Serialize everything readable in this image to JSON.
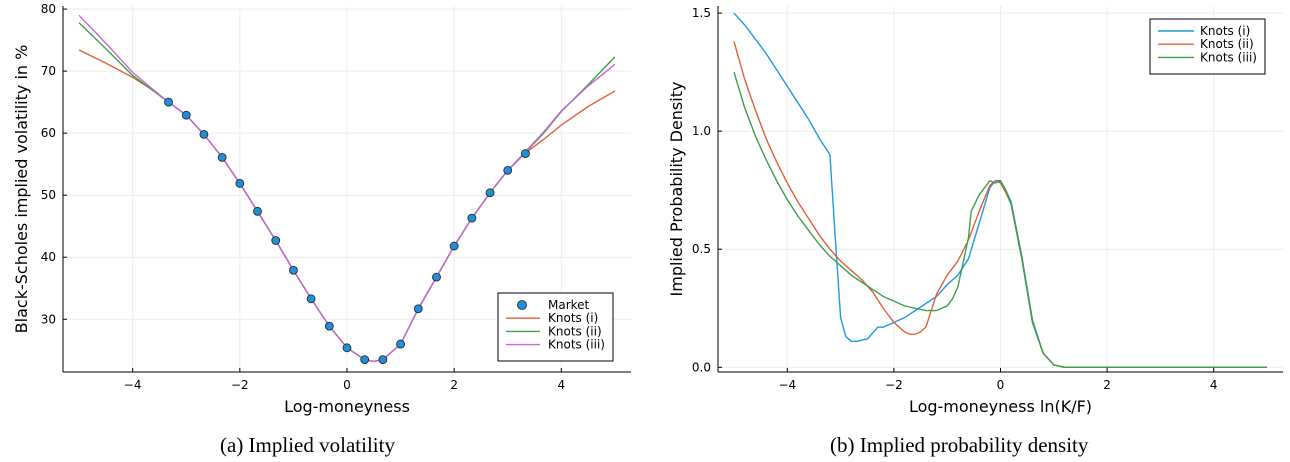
{
  "colors": {
    "market": "#1f8fd6",
    "knots_i_left": "#e0603a",
    "knots_ii_left": "#3ba14b",
    "knots_iii_left": "#c966d9",
    "knots_i_right": "#1f9be0",
    "knots_ii_right": "#e0603a",
    "knots_iii_right": "#3ba14b",
    "grid": "#ececec",
    "frame": "#000000"
  },
  "captions": {
    "left": "(a)  Implied volatility",
    "right": "(b)  Implied probability density"
  },
  "chart_data": [
    {
      "type": "line",
      "title": "",
      "xlabel": "Log-moneyness",
      "ylabel": "Black-Scholes implied volatility in %",
      "xlim": [
        -5.3,
        5.3
      ],
      "ylim": [
        21.5,
        80.5
      ],
      "xticks": [
        -4,
        -2,
        0,
        2,
        4
      ],
      "xtick_labels": [
        "−4",
        "−2",
        "0",
        "2",
        "4"
      ],
      "yticks": [
        30,
        40,
        50,
        60,
        70,
        80
      ],
      "ytick_labels": [
        "30",
        "40",
        "50",
        "60",
        "70",
        "80"
      ],
      "grid": true,
      "legend": "bottom-right",
      "scatter": {
        "name": "Market",
        "x": [
          -3.33,
          -3.0,
          -2.67,
          -2.33,
          -2.0,
          -1.67,
          -1.33,
          -1.0,
          -0.67,
          -0.33,
          0.0,
          0.33,
          0.67,
          1.0,
          1.33,
          1.67,
          2.0,
          2.33,
          2.67,
          3.0,
          3.33
        ],
        "y": [
          65.0,
          62.9,
          59.8,
          56.1,
          51.9,
          47.4,
          42.7,
          37.9,
          33.3,
          28.9,
          25.4,
          23.5,
          23.5,
          26.0,
          31.7,
          36.8,
          41.8,
          46.3,
          50.4,
          54.0,
          56.7
        ]
      },
      "series": [
        {
          "name": "Knots (i)",
          "x": [
            -5,
            -4.5,
            -4,
            -3.67,
            -3.33,
            -3.0,
            -2.67,
            -2.33,
            -2.0,
            -1.67,
            -1.33,
            -1.0,
            -0.67,
            -0.33,
            0.0,
            0.33,
            0.5,
            0.67,
            1.0,
            1.33,
            1.67,
            2.0,
            2.33,
            2.67,
            3.0,
            3.33,
            3.67,
            4.0,
            4.5,
            5.0
          ],
          "y": [
            73.4,
            71.3,
            69.0,
            67.2,
            65.0,
            62.9,
            59.8,
            56.1,
            51.9,
            47.4,
            42.7,
            37.9,
            33.3,
            28.9,
            25.4,
            23.5,
            23.2,
            23.5,
            26.0,
            31.7,
            36.8,
            41.8,
            46.3,
            50.4,
            54.0,
            56.8,
            59.0,
            61.3,
            64.3,
            66.8
          ]
        },
        {
          "name": "Knots (ii)",
          "x": [
            -5,
            -4.5,
            -4,
            -3.67,
            -3.33,
            -3.0,
            -2.67,
            -2.33,
            -2.0,
            -1.67,
            -1.33,
            -1.0,
            -0.67,
            -0.33,
            0.0,
            0.33,
            0.5,
            0.67,
            1.0,
            1.33,
            1.67,
            2.0,
            2.33,
            2.67,
            3.0,
            3.33,
            3.67,
            4.0,
            4.5,
            5.0
          ],
          "y": [
            77.8,
            73.6,
            69.3,
            67.2,
            65.0,
            62.9,
            59.8,
            56.1,
            51.9,
            47.4,
            42.7,
            37.9,
            33.3,
            28.9,
            25.4,
            23.5,
            23.2,
            23.5,
            26.0,
            31.7,
            36.8,
            41.8,
            46.3,
            50.4,
            54.0,
            56.9,
            60.0,
            63.5,
            67.8,
            72.3
          ]
        },
        {
          "name": "Knots (iii)",
          "x": [
            -5,
            -4.5,
            -4,
            -3.67,
            -3.33,
            -3.0,
            -2.67,
            -2.33,
            -2.0,
            -1.67,
            -1.33,
            -1.0,
            -0.67,
            -0.33,
            0.0,
            0.33,
            0.5,
            0.67,
            1.0,
            1.33,
            1.67,
            2.0,
            2.33,
            2.67,
            3.0,
            3.33,
            3.67,
            4.0,
            4.5,
            5.0
          ],
          "y": [
            79.0,
            74.5,
            69.8,
            67.4,
            65.0,
            62.9,
            59.8,
            56.1,
            51.9,
            47.4,
            42.7,
            37.9,
            33.3,
            28.9,
            25.4,
            23.5,
            23.2,
            23.5,
            26.0,
            31.7,
            36.8,
            41.8,
            46.3,
            50.4,
            54.0,
            57.0,
            60.2,
            63.6,
            67.6,
            71.1
          ]
        }
      ]
    },
    {
      "type": "line",
      "title": "",
      "xlabel": "Log-moneyness ln(K/F)",
      "ylabel": "Implied Probability Density",
      "xlim": [
        -5.3,
        5.3
      ],
      "ylim": [
        -0.02,
        1.53
      ],
      "xticks": [
        -4,
        -2,
        0,
        2,
        4
      ],
      "xtick_labels": [
        "−4",
        "−2",
        "0",
        "2",
        "4"
      ],
      "yticks": [
        0.0,
        0.5,
        1.0,
        1.5
      ],
      "ytick_labels": [
        "0.0",
        "0.5",
        "1.0",
        "1.5"
      ],
      "grid": true,
      "legend": "top-right",
      "series": [
        {
          "name": "Knots (i)",
          "x": [
            -5.0,
            -4.8,
            -4.6,
            -4.4,
            -4.2,
            -4.0,
            -3.8,
            -3.6,
            -3.4,
            -3.2,
            -3.1,
            -3.0,
            -2.9,
            -2.8,
            -2.7,
            -2.5,
            -2.3,
            -2.2,
            -2.0,
            -1.8,
            -1.6,
            -1.4,
            -1.2,
            -1.0,
            -0.8,
            -0.6,
            -0.4,
            -0.2,
            -0.1,
            0.0,
            0.1,
            0.2,
            0.4,
            0.6,
            0.8,
            1.0,
            1.2,
            1.5,
            2.0,
            3.0,
            4.0,
            5.0
          ],
          "y": [
            1.5,
            1.45,
            1.39,
            1.33,
            1.26,
            1.19,
            1.12,
            1.05,
            0.97,
            0.9,
            0.55,
            0.21,
            0.13,
            0.11,
            0.11,
            0.12,
            0.17,
            0.17,
            0.19,
            0.21,
            0.24,
            0.27,
            0.3,
            0.35,
            0.39,
            0.46,
            0.61,
            0.76,
            0.79,
            0.79,
            0.75,
            0.7,
            0.47,
            0.2,
            0.06,
            0.01,
            0.0,
            0.0,
            0.0,
            0.0,
            0.0,
            0.0
          ]
        },
        {
          "name": "Knots (ii)",
          "x": [
            -5.0,
            -4.8,
            -4.6,
            -4.4,
            -4.2,
            -4.0,
            -3.8,
            -3.6,
            -3.4,
            -3.2,
            -3.0,
            -2.8,
            -2.6,
            -2.4,
            -2.2,
            -2.0,
            -1.8,
            -1.7,
            -1.6,
            -1.5,
            -1.4,
            -1.3,
            -1.2,
            -1.0,
            -0.8,
            -0.6,
            -0.4,
            -0.2,
            -0.1,
            0.0,
            0.1,
            0.2,
            0.4,
            0.6,
            0.8,
            1.0,
            1.2,
            1.5,
            2.0,
            3.0,
            4.0,
            5.0
          ],
          "y": [
            1.38,
            1.22,
            1.09,
            0.97,
            0.87,
            0.78,
            0.7,
            0.63,
            0.56,
            0.5,
            0.45,
            0.41,
            0.37,
            0.32,
            0.25,
            0.19,
            0.15,
            0.14,
            0.14,
            0.15,
            0.17,
            0.24,
            0.31,
            0.39,
            0.45,
            0.54,
            0.66,
            0.77,
            0.79,
            0.78,
            0.74,
            0.69,
            0.46,
            0.19,
            0.06,
            0.01,
            0.0,
            0.0,
            0.0,
            0.0,
            0.0,
            0.0
          ]
        },
        {
          "name": "Knots (iii)",
          "x": [
            -5.0,
            -4.8,
            -4.6,
            -4.4,
            -4.2,
            -4.0,
            -3.8,
            -3.6,
            -3.4,
            -3.2,
            -3.0,
            -2.8,
            -2.6,
            -2.4,
            -2.2,
            -2.0,
            -1.8,
            -1.6,
            -1.4,
            -1.2,
            -1.0,
            -0.9,
            -0.8,
            -0.6,
            -0.55,
            -0.4,
            -0.2,
            -0.1,
            0.0,
            0.1,
            0.2,
            0.4,
            0.6,
            0.8,
            1.0,
            1.2,
            1.5,
            2.0,
            3.0,
            4.0,
            5.0
          ],
          "y": [
            1.25,
            1.1,
            0.98,
            0.88,
            0.79,
            0.71,
            0.64,
            0.58,
            0.52,
            0.47,
            0.43,
            0.39,
            0.36,
            0.33,
            0.3,
            0.28,
            0.26,
            0.25,
            0.24,
            0.24,
            0.26,
            0.29,
            0.34,
            0.55,
            0.66,
            0.73,
            0.79,
            0.78,
            0.79,
            0.75,
            0.69,
            0.46,
            0.19,
            0.06,
            0.01,
            0.0,
            0.0,
            0.0,
            0.0,
            0.0,
            0.0
          ]
        }
      ]
    }
  ]
}
